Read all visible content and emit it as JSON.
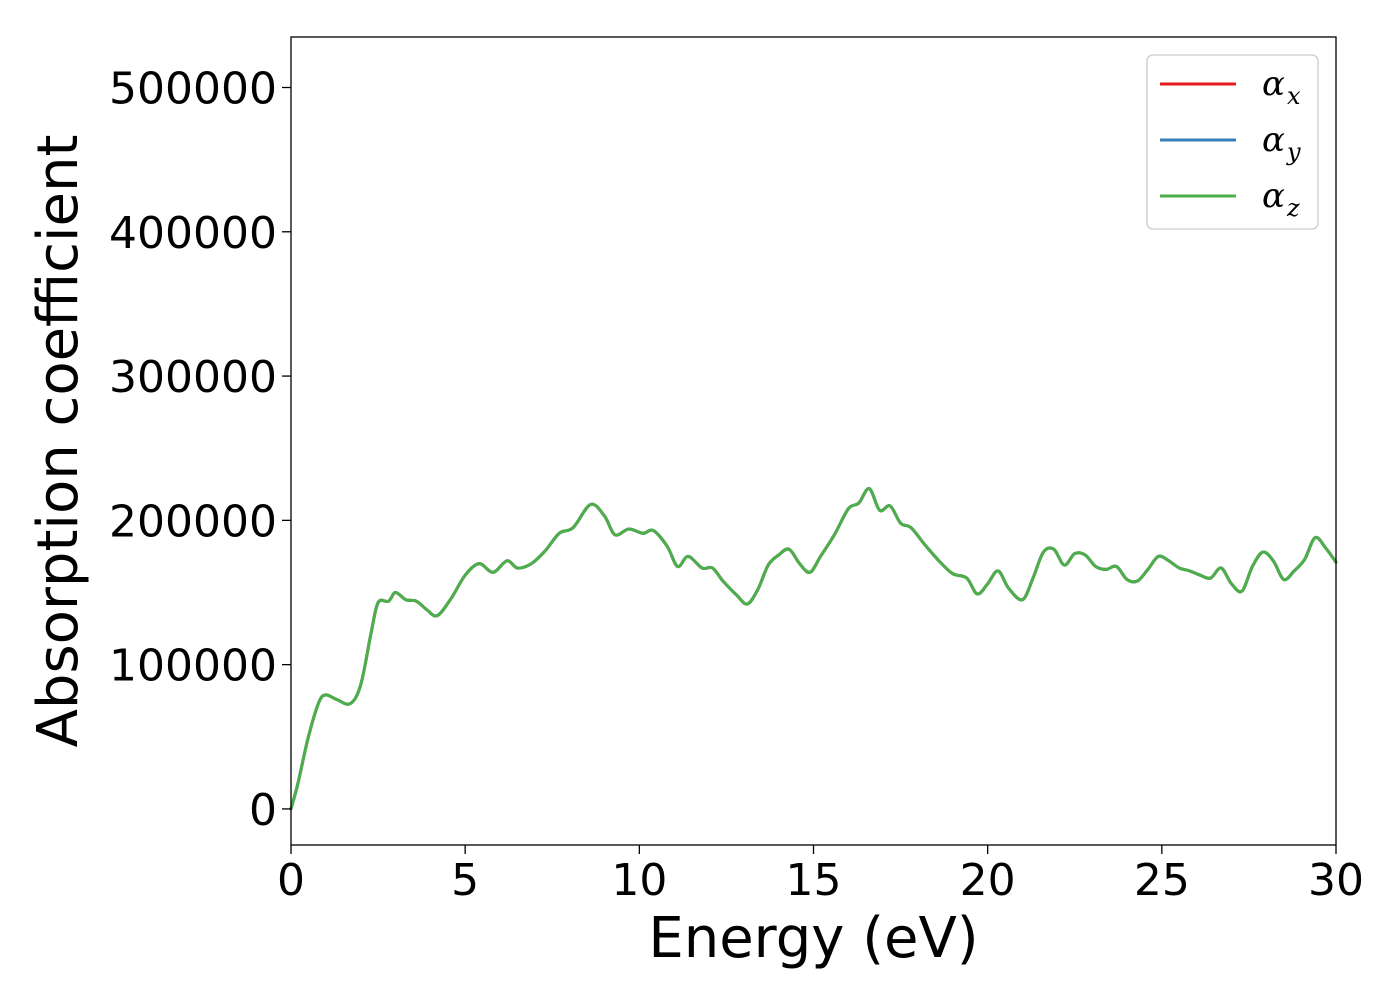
{
  "chart_data": {
    "type": "line",
    "xlabel": "Energy (eV)",
    "ylabel": "Absorption coefficient",
    "xlim": [
      0,
      30
    ],
    "ylim": [
      -25000,
      535000
    ],
    "xticks": [
      0,
      5,
      10,
      15,
      20,
      25,
      30
    ],
    "xtick_labels": [
      "0",
      "5",
      "10",
      "15",
      "20",
      "25",
      "30"
    ],
    "yticks": [
      0,
      100000,
      200000,
      300000,
      400000,
      500000
    ],
    "ytick_labels": [
      "0",
      "100000",
      "200000",
      "300000",
      "400000",
      "500000"
    ],
    "grid": false,
    "legend_position": "top-right",
    "series": [
      {
        "name": "α",
        "subscript": "x",
        "color": "#e41a1c",
        "x": [
          0,
          0.2,
          0.5,
          0.8,
          1.0,
          1.3,
          1.7,
          2.0,
          2.3,
          2.5,
          2.8,
          3.0,
          3.3,
          3.6,
          3.9,
          4.2,
          4.6,
          5.0,
          5.4,
          5.8,
          6.2,
          6.5,
          6.9,
          7.3,
          7.7,
          8.1,
          8.6,
          9.0,
          9.3,
          9.7,
          10.1,
          10.4,
          10.8,
          11.1,
          11.4,
          11.8,
          12.1,
          12.4,
          12.8,
          13.1,
          13.4,
          13.7,
          14.0,
          14.3,
          14.6,
          14.9,
          15.2,
          15.6,
          16.0,
          16.3,
          16.6,
          16.9,
          17.2,
          17.5,
          17.8,
          18.2,
          18.6,
          19.0,
          19.4,
          19.7,
          20.0,
          20.3,
          20.6,
          21.0,
          21.3,
          21.6,
          21.9,
          22.2,
          22.5,
          22.8,
          23.1,
          23.4,
          23.7,
          24.0,
          24.3,
          24.6,
          24.9,
          25.2,
          25.5,
          25.8,
          26.1,
          26.4,
          26.7,
          27.0,
          27.3,
          27.6,
          27.9,
          28.2,
          28.5,
          28.8,
          29.1,
          29.4,
          29.7,
          30.0
        ],
        "values": [
          0,
          18000,
          50000,
          74000,
          79000,
          76000,
          73000,
          86000,
          122000,
          143000,
          144000,
          150000,
          145000,
          144000,
          138000,
          134000,
          146000,
          162000,
          170000,
          164000,
          172000,
          167000,
          170000,
          179000,
          191000,
          195000,
          211000,
          203000,
          190000,
          194000,
          191000,
          193000,
          182000,
          168000,
          175000,
          167000,
          167000,
          158000,
          148000,
          142000,
          152000,
          169000,
          176000,
          180000,
          170000,
          164000,
          175000,
          190000,
          208000,
          212000,
          222000,
          207000,
          210000,
          198000,
          195000,
          183000,
          172000,
          163000,
          160000,
          149000,
          156000,
          165000,
          153000,
          145000,
          160000,
          178000,
          180000,
          169000,
          177000,
          176000,
          168000,
          166000,
          168000,
          159000,
          158000,
          166000,
          175000,
          172000,
          167000,
          165000,
          162000,
          160000,
          167000,
          156000,
          151000,
          168000,
          178000,
          172000,
          159000,
          165000,
          173000,
          188000,
          181000,
          171000
        ]
      },
      {
        "name": "α",
        "subscript": "y",
        "color": "#377eb8",
        "x": [
          0,
          0.2,
          0.5,
          0.8,
          1.0,
          1.3,
          1.7,
          2.0,
          2.3,
          2.5,
          2.8,
          3.0,
          3.3,
          3.6,
          3.9,
          4.2,
          4.6,
          5.0,
          5.4,
          5.8,
          6.2,
          6.5,
          6.9,
          7.3,
          7.7,
          8.1,
          8.6,
          9.0,
          9.3,
          9.7,
          10.1,
          10.4,
          10.8,
          11.1,
          11.4,
          11.8,
          12.1,
          12.4,
          12.8,
          13.1,
          13.4,
          13.7,
          14.0,
          14.3,
          14.6,
          14.9,
          15.2,
          15.6,
          16.0,
          16.3,
          16.6,
          16.9,
          17.2,
          17.5,
          17.8,
          18.2,
          18.6,
          19.0,
          19.4,
          19.7,
          20.0,
          20.3,
          20.6,
          21.0,
          21.3,
          21.6,
          21.9,
          22.2,
          22.5,
          22.8,
          23.1,
          23.4,
          23.7,
          24.0,
          24.3,
          24.6,
          24.9,
          25.2,
          25.5,
          25.8,
          26.1,
          26.4,
          26.7,
          27.0,
          27.3,
          27.6,
          27.9,
          28.2,
          28.5,
          28.8,
          29.1,
          29.4,
          29.7,
          30.0
        ],
        "values": [
          0,
          18000,
          50000,
          74000,
          79000,
          76000,
          73000,
          86000,
          122000,
          143000,
          144000,
          150000,
          145000,
          144000,
          138000,
          134000,
          146000,
          162000,
          170000,
          164000,
          172000,
          167000,
          170000,
          179000,
          191000,
          195000,
          211000,
          203000,
          190000,
          194000,
          191000,
          193000,
          182000,
          168000,
          175000,
          167000,
          167000,
          158000,
          148000,
          142000,
          152000,
          169000,
          176000,
          180000,
          170000,
          164000,
          175000,
          190000,
          208000,
          212000,
          222000,
          207000,
          210000,
          198000,
          195000,
          183000,
          172000,
          163000,
          160000,
          149000,
          156000,
          165000,
          153000,
          145000,
          160000,
          178000,
          180000,
          169000,
          177000,
          176000,
          168000,
          166000,
          168000,
          159000,
          158000,
          166000,
          175000,
          172000,
          167000,
          165000,
          162000,
          160000,
          167000,
          156000,
          151000,
          168000,
          178000,
          172000,
          159000,
          165000,
          173000,
          188000,
          181000,
          171000
        ]
      },
      {
        "name": "α",
        "subscript": "z",
        "color": "#4daf4a",
        "x": [
          0,
          0.2,
          0.5,
          0.8,
          1.0,
          1.3,
          1.7,
          2.0,
          2.3,
          2.5,
          2.8,
          3.0,
          3.3,
          3.6,
          3.9,
          4.2,
          4.6,
          5.0,
          5.4,
          5.8,
          6.2,
          6.5,
          6.9,
          7.3,
          7.7,
          8.1,
          8.6,
          9.0,
          9.3,
          9.7,
          10.1,
          10.4,
          10.8,
          11.1,
          11.4,
          11.8,
          12.1,
          12.4,
          12.8,
          13.1,
          13.4,
          13.7,
          14.0,
          14.3,
          14.6,
          14.9,
          15.2,
          15.6,
          16.0,
          16.3,
          16.6,
          16.9,
          17.2,
          17.5,
          17.8,
          18.2,
          18.6,
          19.0,
          19.4,
          19.7,
          20.0,
          20.3,
          20.6,
          21.0,
          21.3,
          21.6,
          21.9,
          22.2,
          22.5,
          22.8,
          23.1,
          23.4,
          23.7,
          24.0,
          24.3,
          24.6,
          24.9,
          25.2,
          25.5,
          25.8,
          26.1,
          26.4,
          26.7,
          27.0,
          27.3,
          27.6,
          27.9,
          28.2,
          28.5,
          28.8,
          29.1,
          29.4,
          29.7,
          30.0
        ],
        "values": [
          0,
          18000,
          50000,
          74000,
          79000,
          76000,
          73000,
          86000,
          122000,
          143000,
          144000,
          150000,
          145000,
          144000,
          138000,
          134000,
          146000,
          162000,
          170000,
          164000,
          172000,
          167000,
          170000,
          179000,
          191000,
          195000,
          211000,
          203000,
          190000,
          194000,
          191000,
          193000,
          182000,
          168000,
          175000,
          167000,
          167000,
          158000,
          148000,
          142000,
          152000,
          169000,
          176000,
          180000,
          170000,
          164000,
          175000,
          190000,
          208000,
          212000,
          222000,
          207000,
          210000,
          198000,
          195000,
          183000,
          172000,
          163000,
          160000,
          149000,
          156000,
          165000,
          153000,
          145000,
          160000,
          178000,
          180000,
          169000,
          177000,
          176000,
          168000,
          166000,
          168000,
          159000,
          158000,
          166000,
          175000,
          172000,
          167000,
          165000,
          162000,
          160000,
          167000,
          156000,
          151000,
          168000,
          178000,
          172000,
          159000,
          165000,
          173000,
          188000,
          181000,
          171000
        ]
      }
    ]
  }
}
